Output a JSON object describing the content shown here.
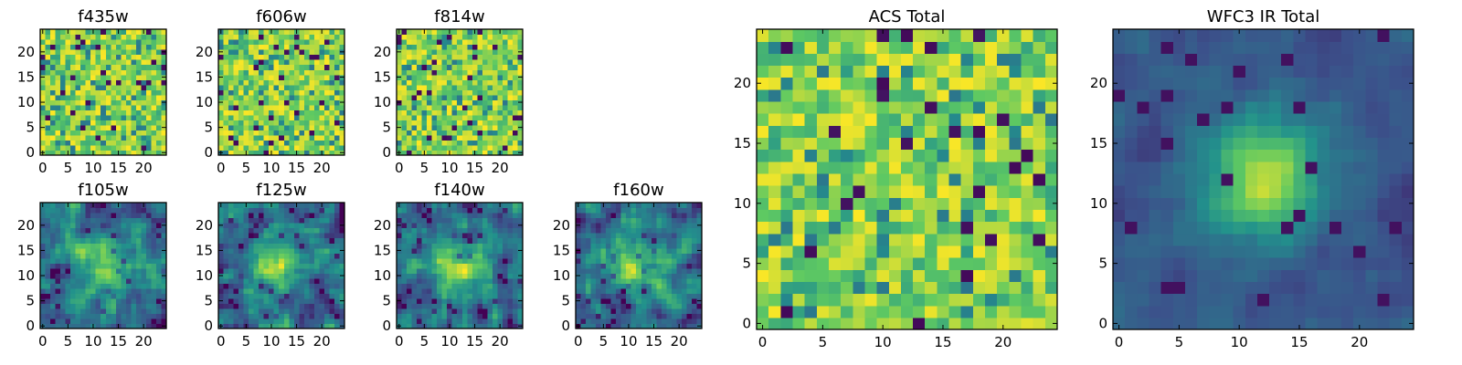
{
  "figure": {
    "colormap": "viridis",
    "colors": [
      "#440154",
      "#3b528b",
      "#21918c",
      "#5ec962",
      "#fde725"
    ]
  },
  "chart_data": [
    {
      "type": "heatmap",
      "title": "f435w",
      "grid": 25,
      "xlim": [
        0,
        24
      ],
      "ylim": [
        0,
        24
      ],
      "xticks": [
        0,
        5,
        10,
        15,
        20
      ],
      "yticks": [
        0,
        5,
        10,
        15,
        20
      ],
      "pattern": "noise",
      "seed": 11,
      "center": [
        12,
        12
      ],
      "sigma": 5,
      "peak": 0
    },
    {
      "type": "heatmap",
      "title": "f606w",
      "grid": 25,
      "xlim": [
        0,
        24
      ],
      "ylim": [
        0,
        24
      ],
      "xticks": [
        0,
        5,
        10,
        15,
        20
      ],
      "yticks": [
        0,
        5,
        10,
        15,
        20
      ],
      "pattern": "noise",
      "seed": 23,
      "center": [
        12,
        12
      ],
      "sigma": 5,
      "peak": 0
    },
    {
      "type": "heatmap",
      "title": "f814w",
      "grid": 25,
      "xlim": [
        0,
        24
      ],
      "ylim": [
        0,
        24
      ],
      "xticks": [
        0,
        5,
        10,
        15,
        20
      ],
      "yticks": [
        0,
        5,
        10,
        15,
        20
      ],
      "pattern": "noise",
      "seed": 37,
      "center": [
        12,
        12
      ],
      "sigma": 5,
      "peak": 0
    },
    {
      "type": "heatmap",
      "title": "f105w",
      "grid": 25,
      "xlim": [
        0,
        24
      ],
      "ylim": [
        0,
        24
      ],
      "xticks": [
        0,
        5,
        10,
        15,
        20
      ],
      "yticks": [
        0,
        5,
        10,
        15,
        20
      ],
      "pattern": "blob",
      "seed": 41,
      "center": [
        13,
        12
      ],
      "sigma": 4,
      "peak": 0.45
    },
    {
      "type": "heatmap",
      "title": "f125w",
      "grid": 25,
      "xlim": [
        0,
        24
      ],
      "ylim": [
        0,
        24
      ],
      "xticks": [
        0,
        5,
        10,
        15,
        20
      ],
      "yticks": [
        0,
        5,
        10,
        15,
        20
      ],
      "pattern": "blob",
      "seed": 53,
      "center": [
        11,
        12
      ],
      "sigma": 4,
      "peak": 0.4
    },
    {
      "type": "heatmap",
      "title": "f140w",
      "grid": 25,
      "xlim": [
        0,
        24
      ],
      "ylim": [
        0,
        24
      ],
      "xticks": [
        0,
        5,
        10,
        15,
        20
      ],
      "yticks": [
        0,
        5,
        10,
        15,
        20
      ],
      "pattern": "blob",
      "seed": 67,
      "center": [
        12,
        12
      ],
      "sigma": 4,
      "peak": 0.4
    },
    {
      "type": "heatmap",
      "title": "f160w",
      "grid": 25,
      "xlim": [
        0,
        24
      ],
      "ylim": [
        0,
        24
      ],
      "xticks": [
        0,
        5,
        10,
        15,
        20
      ],
      "yticks": [
        0,
        5,
        10,
        15,
        20
      ],
      "pattern": "blob",
      "seed": 79,
      "center": [
        11,
        12
      ],
      "sigma": 4,
      "peak": 0.45
    },
    {
      "type": "heatmap",
      "title": "ACS Total",
      "grid": 25,
      "xlim": [
        0,
        24
      ],
      "ylim": [
        0,
        24
      ],
      "xticks": [
        0,
        5,
        10,
        15,
        20
      ],
      "yticks": [
        0,
        5,
        10,
        15,
        20
      ],
      "pattern": "noise",
      "seed": 97,
      "center": [
        12,
        12
      ],
      "sigma": 5,
      "peak": 0
    },
    {
      "type": "heatmap",
      "title": "WFC3 IR Total",
      "grid": 25,
      "xlim": [
        0,
        24
      ],
      "ylim": [
        0,
        24
      ],
      "xticks": [
        0,
        5,
        10,
        15,
        20
      ],
      "yticks": [
        0,
        5,
        10,
        15,
        20
      ],
      "pattern": "source",
      "seed": 113,
      "center": [
        12,
        12
      ],
      "sigma": 3.2,
      "peak": 0.65
    }
  ]
}
